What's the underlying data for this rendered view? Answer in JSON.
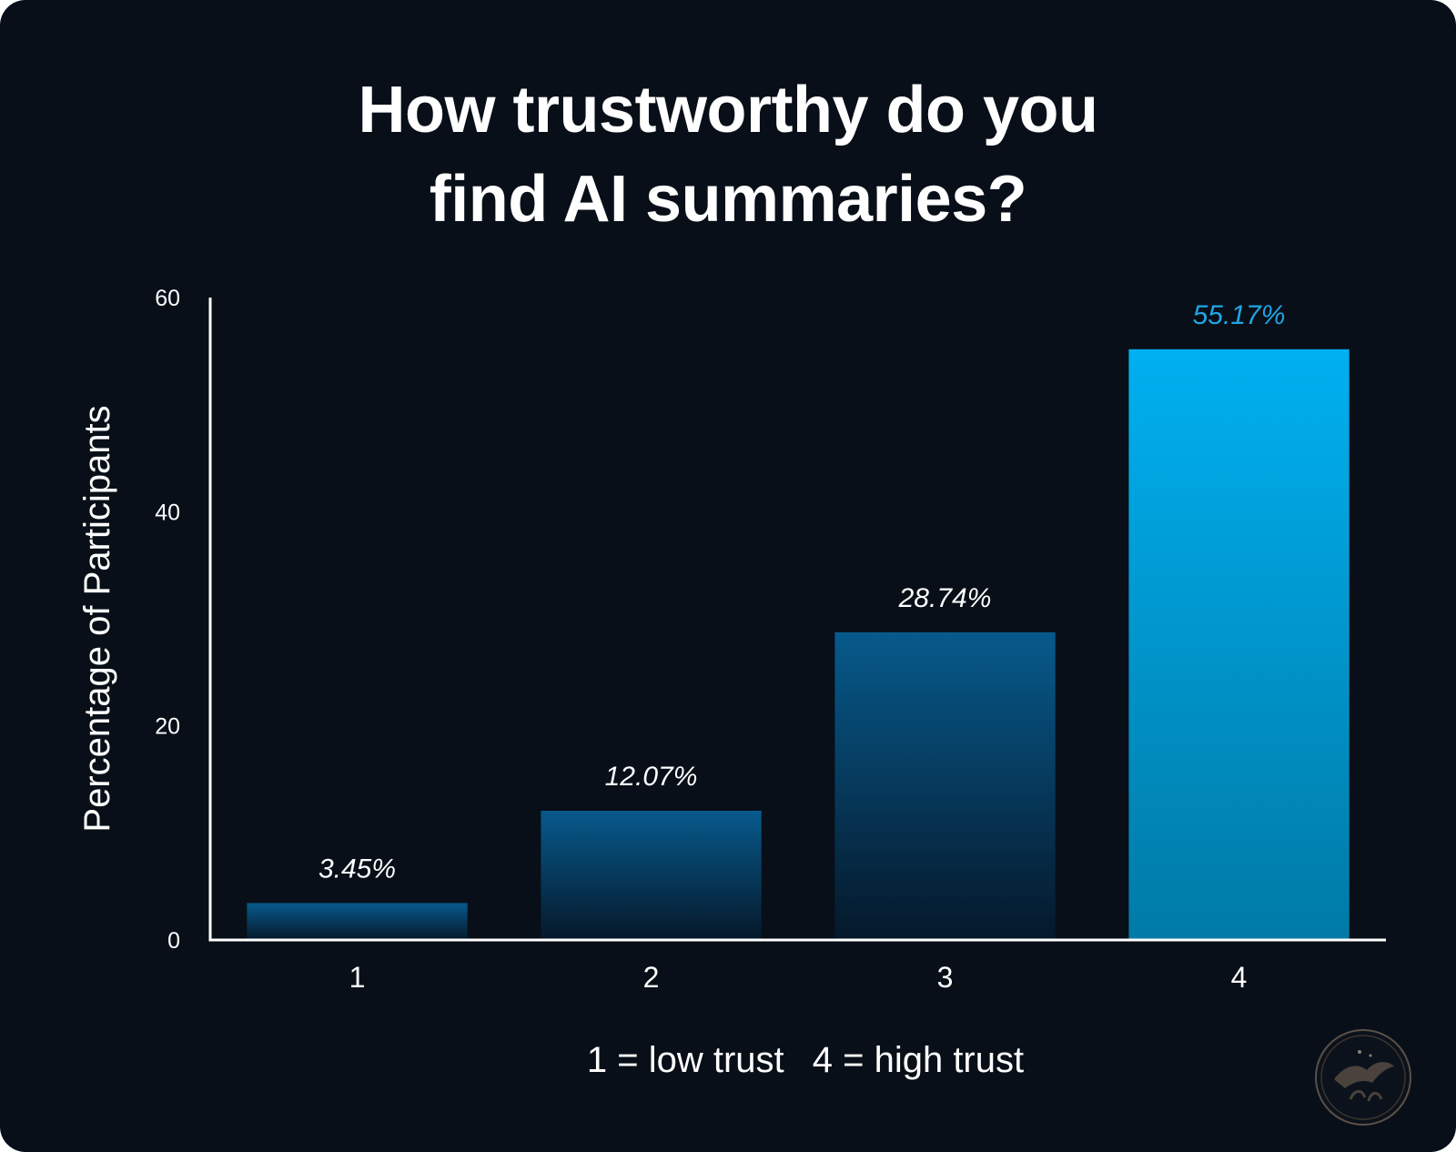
{
  "title_lines": [
    "How trustworthy do you",
    "find AI summaries?"
  ],
  "note": {
    "low": "1 = low trust",
    "high": "4 = high trust"
  },
  "colors": {
    "background": "#080f18",
    "bar_top": "#075a8c",
    "bar_bottom": "#05182a",
    "highlight_top": "#00b0f0",
    "highlight_bottom": "#007aa6",
    "highlight_label": "#1fa6e6",
    "text": "#ffffff"
  },
  "chart_data": {
    "type": "bar",
    "title": "How trustworthy do you find AI summaries?",
    "categories": [
      "1",
      "2",
      "3",
      "4"
    ],
    "values": [
      3.45,
      12.07,
      28.74,
      55.17
    ],
    "value_labels": [
      "3.45%",
      "12.07%",
      "28.74%",
      "55.17%"
    ],
    "highlight_index": 3,
    "xlabel": "",
    "ylabel": "Percentage of Participants",
    "ylim": [
      0,
      60
    ],
    "yticks": [
      0,
      20,
      40,
      60
    ],
    "grid": false,
    "legend": "none"
  }
}
